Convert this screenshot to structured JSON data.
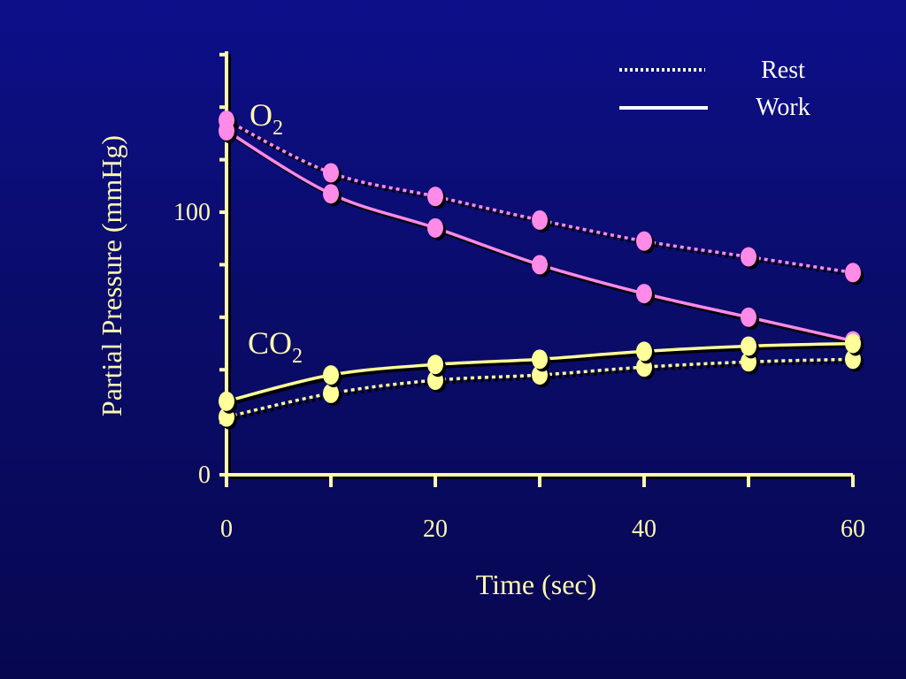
{
  "chart_data": {
    "type": "line",
    "xlabel": "Time  (sec)",
    "ylabel": "Partial Pressure  (mmHg)",
    "xlim": [
      0,
      60
    ],
    "ylim": [
      0,
      160
    ],
    "x_ticks": [
      0,
      20,
      40,
      60
    ],
    "y_ticks_labeled": [
      0,
      100
    ],
    "y_ticks_minor": [
      20,
      40,
      60,
      80,
      120,
      140
    ],
    "x_ticks_minor": [
      10,
      30,
      50
    ],
    "legend": {
      "placement": "top-right",
      "entries": [
        {
          "label": "Rest",
          "style": "dotted"
        },
        {
          "label": "Work",
          "style": "solid"
        }
      ]
    },
    "annotations": [
      {
        "text": "O",
        "sub": "2",
        "group": "O2"
      },
      {
        "text": "CO",
        "sub": "2",
        "group": "CO2"
      }
    ],
    "series": [
      {
        "group": "O2",
        "condition": "Rest",
        "style": "dotted",
        "color": "#ff8ae8",
        "x": [
          0,
          10,
          20,
          30,
          40,
          50,
          60
        ],
        "y": [
          135,
          115,
          106,
          97,
          89,
          83,
          77
        ]
      },
      {
        "group": "O2",
        "condition": "Work",
        "style": "solid",
        "color": "#ff8ae8",
        "x": [
          0,
          10,
          20,
          30,
          40,
          50,
          60
        ],
        "y": [
          131,
          107,
          94,
          80,
          69,
          60,
          51
        ]
      },
      {
        "group": "CO2",
        "condition": "Rest",
        "style": "dotted",
        "color": "#ffff99",
        "x": [
          0,
          10,
          20,
          30,
          40,
          50,
          60
        ],
        "y": [
          22,
          31,
          36,
          38,
          41,
          43,
          44
        ]
      },
      {
        "group": "CO2",
        "condition": "Work",
        "style": "solid",
        "color": "#ffff99",
        "x": [
          0,
          10,
          20,
          30,
          40,
          50,
          60
        ],
        "y": [
          28,
          38,
          42,
          44,
          47,
          49,
          50
        ]
      }
    ]
  },
  "colors": {
    "axis": "#fff8b0",
    "o2": "#ff8ae8",
    "co2": "#ffff99",
    "legend_line": "#ffffff",
    "shadow": "#000000"
  }
}
